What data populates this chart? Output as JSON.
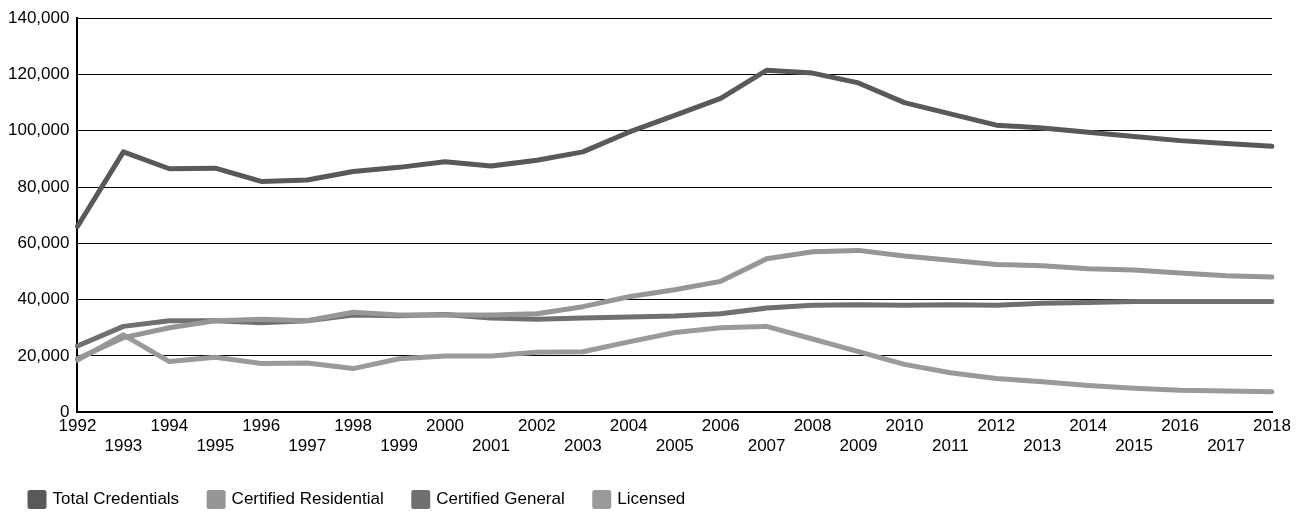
{
  "chart_data": {
    "type": "line",
    "categories": [
      "1992",
      "1993",
      "1994",
      "1995",
      "1996",
      "1997",
      "1998",
      "1999",
      "2000",
      "2001",
      "2002",
      "2003",
      "2004",
      "2005",
      "2006",
      "2007",
      "2008",
      "2009",
      "2010",
      "2011",
      "2012",
      "2013",
      "2014",
      "2015",
      "2016",
      "2017",
      "2018"
    ],
    "series": [
      {
        "name": "Total Credentials",
        "color": "#595959",
        "values": [
          66000,
          92500,
          86500,
          86700,
          82000,
          82500,
          85500,
          87000,
          89000,
          87500,
          89500,
          92500,
          99500,
          105500,
          111500,
          121500,
          120500,
          117000,
          110000,
          106000,
          102000,
          101000,
          99500,
          98000,
          96500,
          95500,
          94500
        ]
      },
      {
        "name": "Certified Residential",
        "color": "#969696",
        "values": [
          19000,
          26500,
          30000,
          32500,
          33000,
          32500,
          35500,
          34500,
          34500,
          34500,
          35000,
          37500,
          41000,
          43500,
          46500,
          54500,
          57000,
          57500,
          55500,
          54000,
          52500,
          52000,
          51000,
          50500,
          49500,
          48500,
          48000
        ]
      },
      {
        "name": "Certified General",
        "color": "#707070",
        "values": [
          23500,
          30500,
          32500,
          32500,
          31800,
          32500,
          34500,
          34300,
          34700,
          33500,
          33000,
          33500,
          33800,
          34200,
          35000,
          37000,
          38000,
          38200,
          38000,
          38200,
          38000,
          38700,
          39000,
          39300,
          39300,
          39300,
          39300
        ]
      },
      {
        "name": "Licensed",
        "color": "#9a9a9a",
        "values": [
          18500,
          27500,
          18000,
          19500,
          17300,
          17500,
          15500,
          19000,
          20000,
          20000,
          21300,
          21500,
          25000,
          28300,
          30000,
          30500,
          26000,
          21500,
          17000,
          14000,
          12000,
          10800,
          9500,
          8500,
          7800,
          7500,
          7300
        ]
      }
    ],
    "ylim": [
      0,
      140000
    ],
    "yticks": [
      0,
      {
        "value": 20000,
        "label": "20,000"
      },
      {
        "value": 40000,
        "label": "40,000"
      },
      {
        "value": 60000,
        "label": "60,000"
      },
      {
        "value": 80000,
        "label": "80,000"
      },
      {
        "value": 100000,
        "label": "100,000"
      },
      {
        "value": 120000,
        "label": "120,000"
      },
      {
        "value": 140000,
        "label": "140,000"
      }
    ],
    "grid": "y",
    "legend": "bottom left",
    "marker": "none",
    "line_style": "solid"
  }
}
